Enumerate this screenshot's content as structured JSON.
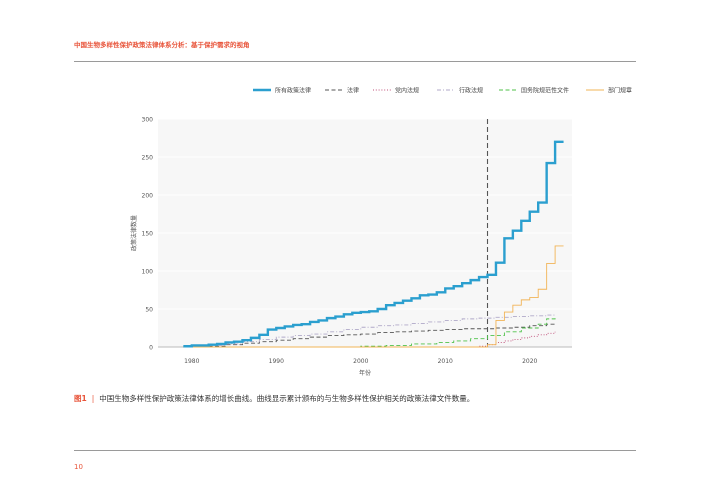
{
  "header": {
    "title": "中国生物多样性保护政策法律体系分析：基于保护需求的视角"
  },
  "caption": {
    "figure_label": "图1",
    "separator": "|",
    "text": "中国生物多样性保护政策法律体系的增长曲线。曲线显示累计颁布的与生物多样性保护相关的政策法律文件数量。"
  },
  "page_number": "10",
  "colors": {
    "all": "#2b9fcf",
    "law": "#555555",
    "party": "#c0507a",
    "admin": "#b0a8c8",
    "state": "#4fc24a",
    "dept": "#f2b457",
    "vline": "#555555",
    "accent": "#e8543a"
  },
  "chart_data": {
    "type": "line",
    "xlabel": "年份",
    "ylabel": "政策法律数量",
    "xlim": [
      1976,
      2025
    ],
    "ylim": [
      0,
      300
    ],
    "xticks": [
      1980,
      1990,
      2000,
      2010,
      2020
    ],
    "yticks": [
      0,
      50,
      100,
      150,
      200,
      250,
      300
    ],
    "grid": "horizontal",
    "legend": "top-right",
    "vertical_marker_x": 2015,
    "series": [
      {
        "key": "all",
        "name": "所有政策法律",
        "style": "solid-thick",
        "points": [
          [
            1979,
            1
          ],
          [
            1980,
            2
          ],
          [
            1982,
            3
          ],
          [
            1983,
            4
          ],
          [
            1984,
            6
          ],
          [
            1985,
            7
          ],
          [
            1986,
            9
          ],
          [
            1987,
            12
          ],
          [
            1988,
            16
          ],
          [
            1989,
            23
          ],
          [
            1990,
            25
          ],
          [
            1991,
            27
          ],
          [
            1992,
            29
          ],
          [
            1993,
            30
          ],
          [
            1994,
            33
          ],
          [
            1995,
            35
          ],
          [
            1996,
            38
          ],
          [
            1997,
            40
          ],
          [
            1998,
            43
          ],
          [
            1999,
            45
          ],
          [
            2000,
            46
          ],
          [
            2001,
            47
          ],
          [
            2002,
            50
          ],
          [
            2003,
            55
          ],
          [
            2004,
            58
          ],
          [
            2005,
            61
          ],
          [
            2006,
            64
          ],
          [
            2007,
            68
          ],
          [
            2008,
            69
          ],
          [
            2009,
            72
          ],
          [
            2010,
            77
          ],
          [
            2011,
            80
          ],
          [
            2012,
            84
          ],
          [
            2013,
            88
          ],
          [
            2014,
            92
          ],
          [
            2015,
            95
          ],
          [
            2016,
            111
          ],
          [
            2017,
            143
          ],
          [
            2018,
            153
          ],
          [
            2019,
            166
          ],
          [
            2020,
            178
          ],
          [
            2021,
            190
          ],
          [
            2022,
            242
          ],
          [
            2023,
            270
          ],
          [
            2024,
            270
          ]
        ]
      },
      {
        "key": "law",
        "name": "法律",
        "style": "dashed",
        "points": [
          [
            1979,
            0
          ],
          [
            1982,
            1
          ],
          [
            1984,
            3
          ],
          [
            1986,
            5
          ],
          [
            1988,
            7
          ],
          [
            1990,
            9
          ],
          [
            1992,
            11
          ],
          [
            1994,
            13
          ],
          [
            1996,
            15
          ],
          [
            1998,
            16
          ],
          [
            2000,
            17
          ],
          [
            2002,
            19
          ],
          [
            2004,
            20
          ],
          [
            2006,
            21
          ],
          [
            2008,
            22
          ],
          [
            2010,
            23
          ],
          [
            2012,
            24
          ],
          [
            2014,
            24
          ],
          [
            2016,
            25
          ],
          [
            2018,
            26
          ],
          [
            2020,
            28
          ],
          [
            2022,
            30
          ],
          [
            2023,
            31
          ]
        ]
      },
      {
        "key": "party",
        "name": "党内法规",
        "style": "dotted",
        "points": [
          [
            1979,
            0
          ],
          [
            2010,
            0
          ],
          [
            2014,
            1
          ],
          [
            2015,
            3
          ],
          [
            2016,
            6
          ],
          [
            2017,
            8
          ],
          [
            2018,
            10
          ],
          [
            2019,
            12
          ],
          [
            2020,
            14
          ],
          [
            2021,
            16
          ],
          [
            2022,
            18
          ],
          [
            2023,
            20
          ]
        ]
      },
      {
        "key": "admin",
        "name": "行政法规",
        "style": "dashdot",
        "points": [
          [
            1979,
            0
          ],
          [
            1982,
            2
          ],
          [
            1984,
            4
          ],
          [
            1986,
            7
          ],
          [
            1988,
            10
          ],
          [
            1990,
            13
          ],
          [
            1992,
            15
          ],
          [
            1994,
            17
          ],
          [
            1996,
            20
          ],
          [
            1998,
            23
          ],
          [
            2000,
            26
          ],
          [
            2002,
            28
          ],
          [
            2004,
            29
          ],
          [
            2006,
            31
          ],
          [
            2008,
            33
          ],
          [
            2010,
            35
          ],
          [
            2012,
            37
          ],
          [
            2014,
            38
          ],
          [
            2016,
            39
          ],
          [
            2018,
            40
          ],
          [
            2020,
            41
          ],
          [
            2022,
            42
          ],
          [
            2023,
            42
          ]
        ]
      },
      {
        "key": "state",
        "name": "国务院规范性文件",
        "style": "dashed",
        "points": [
          [
            1979,
            0
          ],
          [
            1996,
            0
          ],
          [
            2000,
            1
          ],
          [
            2003,
            2
          ],
          [
            2006,
            4
          ],
          [
            2009,
            6
          ],
          [
            2011,
            8
          ],
          [
            2013,
            11
          ],
          [
            2015,
            15
          ],
          [
            2017,
            20
          ],
          [
            2019,
            25
          ],
          [
            2021,
            30
          ],
          [
            2022,
            37
          ],
          [
            2023,
            40
          ]
        ]
      },
      {
        "key": "dept",
        "name": "部门规章",
        "style": "solid-thin",
        "points": [
          [
            1979,
            0
          ],
          [
            2000,
            0
          ],
          [
            2010,
            0
          ],
          [
            2014,
            0
          ],
          [
            2015,
            3
          ],
          [
            2016,
            35
          ],
          [
            2017,
            46
          ],
          [
            2018,
            55
          ],
          [
            2019,
            62
          ],
          [
            2020,
            65
          ],
          [
            2021,
            76
          ],
          [
            2022,
            110
          ],
          [
            2023,
            133
          ],
          [
            2024,
            133
          ]
        ]
      }
    ]
  }
}
